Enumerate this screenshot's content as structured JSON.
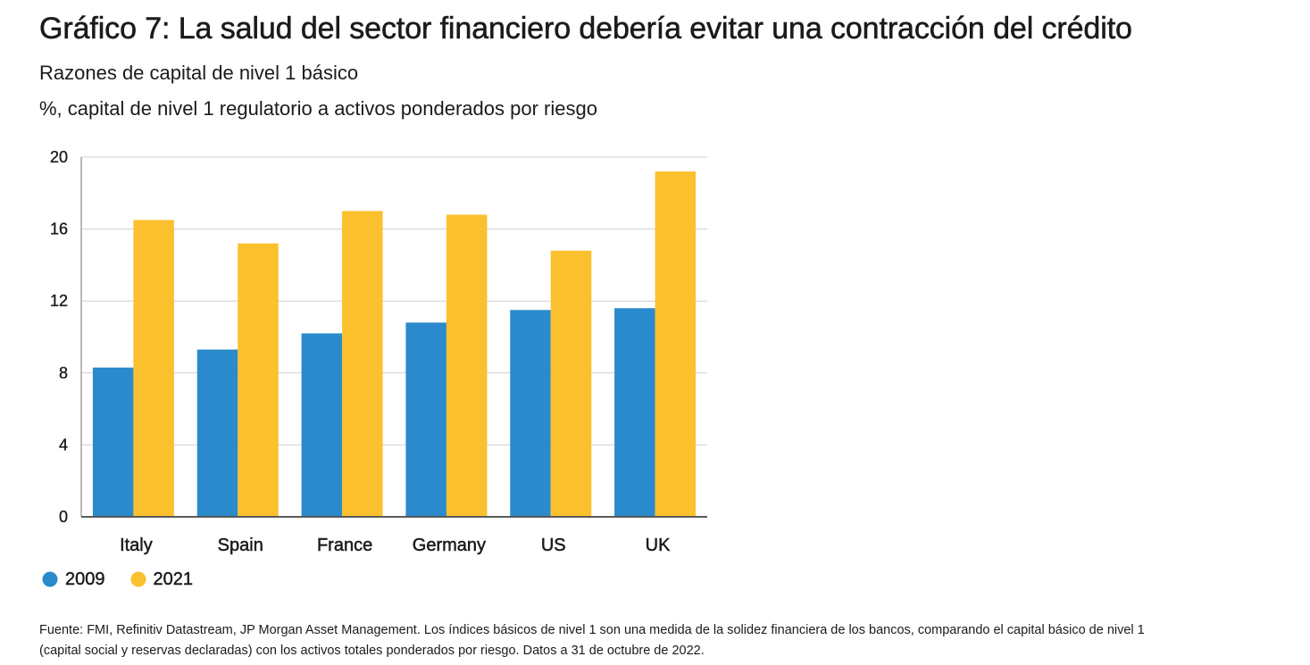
{
  "chart_data": {
    "type": "bar",
    "title": "Gráfico 7: La salud del sector financiero debería evitar una contracción del crédito",
    "subtitle": "Razones de capital de nivel 1 básico",
    "ylabel": "%, capital de nivel 1 regulatorio a activos ponderados por riesgo",
    "xlabel": "",
    "categories": [
      "Italy",
      "Spain",
      "France",
      "Germany",
      "US",
      "UK"
    ],
    "series": [
      {
        "name": "2009",
        "color": "#2B8ACB",
        "values": [
          8.3,
          9.3,
          10.2,
          10.8,
          11.5,
          11.6
        ]
      },
      {
        "name": "2021",
        "color": "#FBC02D",
        "values": [
          16.5,
          15.2,
          17.0,
          16.8,
          14.8,
          19.2
        ]
      }
    ],
    "ylim": [
      0,
      20
    ],
    "yticks": [
      0,
      4,
      8,
      12,
      16,
      20
    ],
    "grid": true,
    "legend": "bottom-left"
  },
  "footnote": {
    "lines": [
      "Fuente: FMI, Refinitiv Datastream, JP Morgan Asset Management. Los índices básicos de nivel 1 son una medida de la solidez financiera de los bancos, comparando el capital básico de nivel 1",
      "(capital social y reservas declaradas) con los activos totales ponderados por riesgo. Datos a 31 de octubre de 2022."
    ]
  }
}
